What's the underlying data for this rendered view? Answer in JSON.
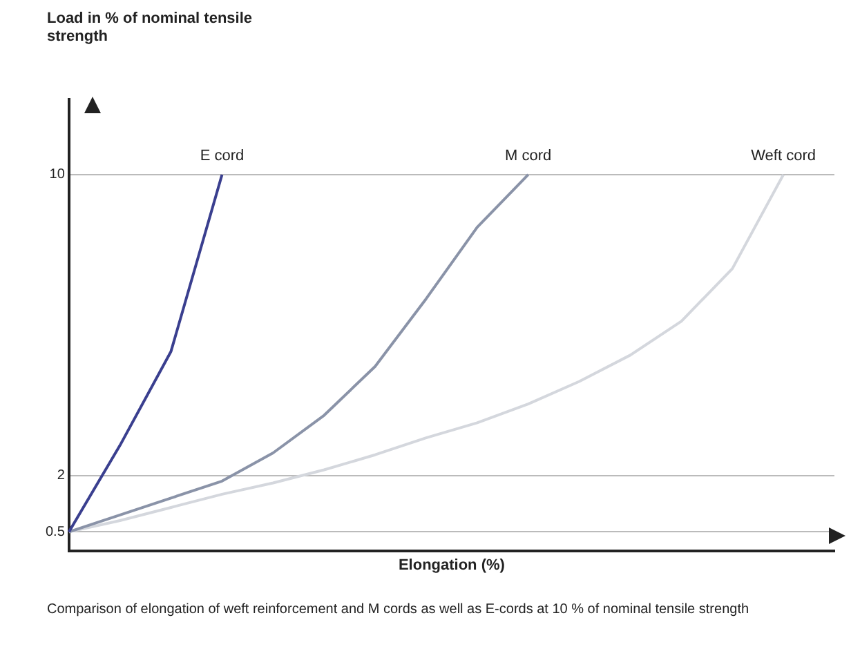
{
  "chart_data": {
    "type": "line",
    "ylabel": "Load in % of nominal tensile strength",
    "xlabel": "Elongation (%)",
    "annotations": [
      "Comparison of elongation of weft reinforcement and M cords as well as E-cords at 10 % of nominal tensile strength"
    ],
    "categories": [
      null,
      null,
      null,
      null,
      null,
      null,
      null,
      null,
      null,
      null,
      null,
      null,
      null,
      null,
      null,
      null
    ],
    "ylim": [
      0,
      12
    ],
    "yticks": [
      0.5,
      2,
      10
    ],
    "tick_labels": "y",
    "grid": "y",
    "legend": false,
    "marker": "none",
    "line_style": "solid",
    "series": [
      {
        "name": "E cord",
        "color": "#3a3f8f",
        "values": [
          0.5,
          2.8,
          5.3,
          10,
          null,
          null,
          null,
          null,
          null,
          null,
          null,
          null,
          null,
          null,
          null,
          null
        ]
      },
      {
        "name": "M cord",
        "color": "#8a93a8",
        "values": [
          0.5,
          0.95,
          1.4,
          1.85,
          2.6,
          3.6,
          4.9,
          6.7,
          8.6,
          10,
          null,
          null,
          null,
          null,
          null,
          null
        ]
      },
      {
        "name": "Weft cord",
        "color": "#d4d7dd",
        "values": [
          0.5,
          0.8,
          1.15,
          1.5,
          1.8,
          2.15,
          2.55,
          3,
          3.4,
          3.9,
          4.5,
          5.2,
          6.1,
          7.5,
          10,
          null
        ]
      }
    ]
  }
}
